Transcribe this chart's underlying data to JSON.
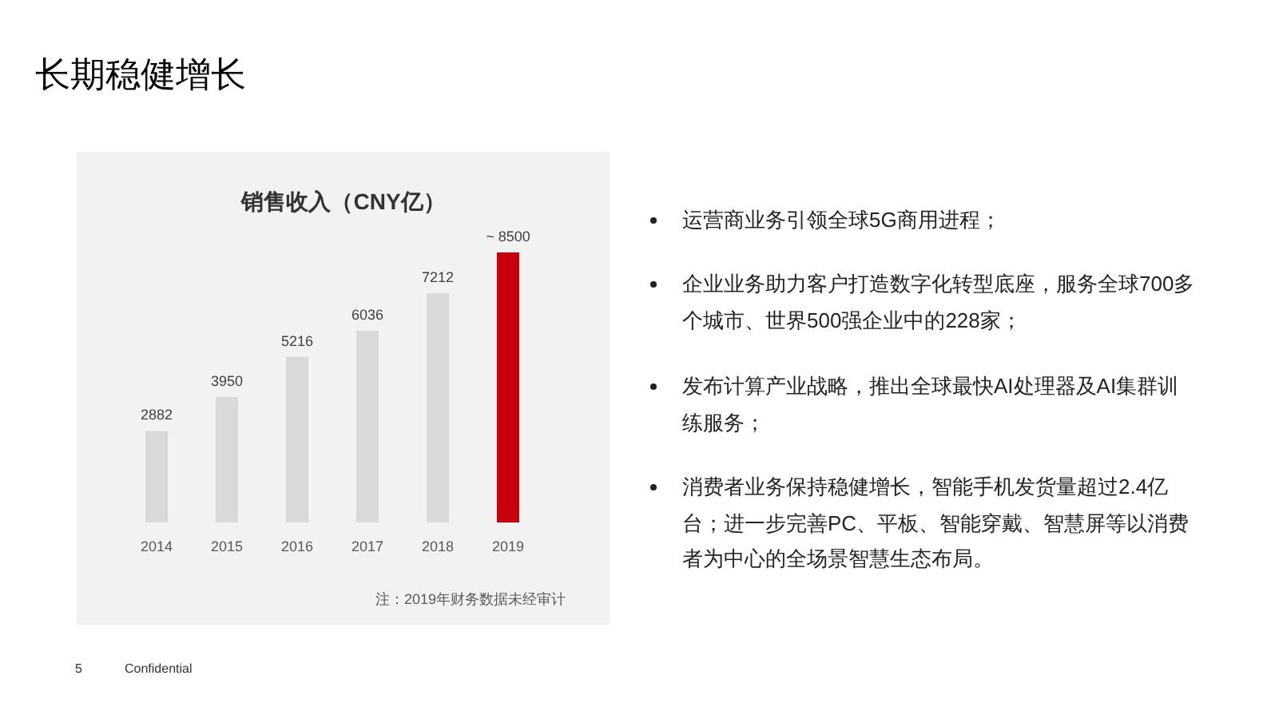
{
  "chart_data": [
    {
      "type": "bar",
      "title": "销售收入（CNY亿）",
      "categories": [
        "2014",
        "2015",
        "2016",
        "2017",
        "2018",
        "2019"
      ],
      "values": [
        2882,
        3950,
        5216,
        6036,
        7212,
        8500
      ],
      "value_labels": [
        "2882",
        "3950",
        "5216",
        "6036",
        "7212",
        "~ 8500"
      ],
      "colors": [
        "#d9d9d9",
        "#d9d9d9",
        "#d9d9d9",
        "#d9d9d9",
        "#d9d9d9",
        "#c7000b"
      ],
      "annotations": [
        "注：2019年财务数据未经审计"
      ]
    },
    {
      "type": "other",
      "title": "长期稳健增长",
      "annotations": [
        "运营商业务引领全球5G商用进程；",
        "企业业务助力客户打造数字化转型底座，服务全球700多个城市、世界500强企业中的228家；",
        "发布计算产业战略，推出全球最快AI处理器及AI集群训练服务；",
        "消费者业务保持稳健增长，智能手机发货量超过2.4亿台；进一步完善PC、平板、智能穿戴、智慧屏等以消费者为中心的全场景智慧生态布局。",
        "5",
        "Confidential"
      ]
    }
  ]
}
